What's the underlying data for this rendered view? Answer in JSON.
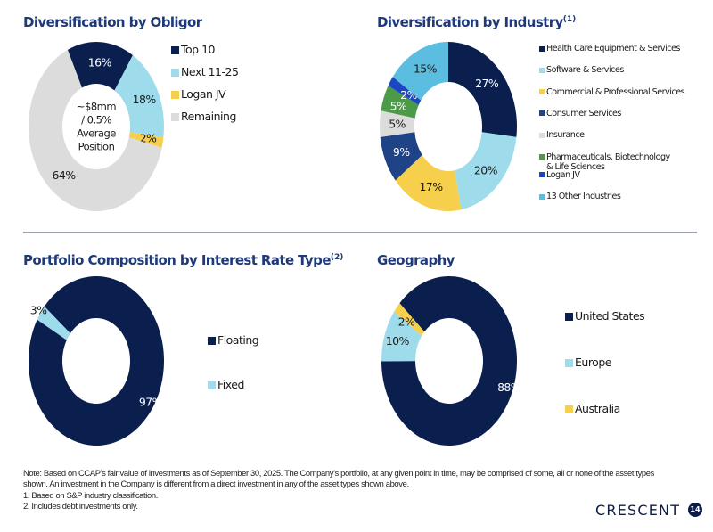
{
  "colors": {
    "navy": "#0b1f4e",
    "light_blue": "#9edcec",
    "yellow": "#f6d04d",
    "gray": "#dcdcdc",
    "medium_blue": "#1e4386",
    "green": "#4a9a47",
    "royal_blue": "#1c47c4",
    "sky_blue": "#5bbde0",
    "title": "#1f3a7a"
  },
  "chart_data": [
    {
      "id": "obligor",
      "type": "pie",
      "title": "Diversification by Obligor",
      "title_sup": "",
      "center_label": [
        "~$8mm",
        "/ 0.5%",
        "Average",
        "Position"
      ],
      "start_angle_deg": -25,
      "slices": [
        {
          "label": "Top 10",
          "value": 16,
          "display": "16%",
          "color": "#0b1f4e",
          "text_color": "#ffffff"
        },
        {
          "label": "Next 11-25",
          "value": 18,
          "display": "18%",
          "color": "#9edcec",
          "text_color": "#1a1a1a"
        },
        {
          "label": "Logan JV",
          "value": 2,
          "display": "2%",
          "color": "#f6d04d",
          "text_color": "#1a1a1a"
        },
        {
          "label": "Remaining",
          "value": 64,
          "display": "64%",
          "color": "#dcdcdc",
          "text_color": "#1a1a1a"
        }
      ],
      "legend_position": "right"
    },
    {
      "id": "industry",
      "type": "pie",
      "title": "Diversification by Industry",
      "title_sup": "(1)",
      "center_label": [],
      "start_angle_deg": 0,
      "slices": [
        {
          "label": "Health Care Equipment & Services",
          "value": 27,
          "display": "27%",
          "color": "#0b1f4e",
          "text_color": "#ffffff"
        },
        {
          "label": "Software & Services",
          "value": 20,
          "display": "20%",
          "color": "#9edcec",
          "text_color": "#1a1a1a"
        },
        {
          "label": "Commercial & Professional Services",
          "value": 17,
          "display": "17%",
          "color": "#f6d04d",
          "text_color": "#1a1a1a"
        },
        {
          "label": "Consumer Services",
          "value": 9,
          "display": "9%",
          "color": "#1e4386",
          "text_color": "#ffffff"
        },
        {
          "label": "Insurance",
          "value": 5,
          "display": "5%",
          "color": "#dcdcdc",
          "text_color": "#1a1a1a"
        },
        {
          "label": "Pharmaceuticals, Biotechnology & Life Sciences",
          "value": 5,
          "display": "5%",
          "color": "#4a9a47",
          "text_color": "#ffffff"
        },
        {
          "label": "Logan JV",
          "value": 2,
          "display": "2%",
          "color": "#1c47c4",
          "text_color": "#ffffff"
        },
        {
          "label": "13 Other Industries",
          "value": 15,
          "display": "15%",
          "color": "#5bbde0",
          "text_color": "#1a1a1a"
        }
      ],
      "legend_position": "right"
    },
    {
      "id": "interest",
      "type": "pie",
      "title": "Portfolio Composition by Interest Rate Type",
      "title_sup": "(2)",
      "center_label": [],
      "start_angle_deg": -50,
      "slices": [
        {
          "label": "Floating",
          "value": 97,
          "display": "97%",
          "color": "#0b1f4e",
          "text_color": "#ffffff"
        },
        {
          "label": "Fixed",
          "value": 3,
          "display": "3%",
          "color": "#9edcec",
          "text_color": "#1a1a1a"
        }
      ],
      "legend_position": "right"
    },
    {
      "id": "geography",
      "type": "pie",
      "title": "Geography",
      "title_sup": "",
      "center_label": [],
      "start_angle_deg": -47,
      "slices": [
        {
          "label": "United States",
          "value": 88,
          "display": "88%",
          "color": "#0b1f4e",
          "text_color": "#ffffff"
        },
        {
          "label": "Europe",
          "value": 10,
          "display": "10%",
          "color": "#9edcec",
          "text_color": "#1a1a1a"
        },
        {
          "label": "Australia",
          "value": 2,
          "display": "2%",
          "color": "#f6d04d",
          "text_color": "#1a1a1a"
        }
      ],
      "legend_position": "right"
    }
  ],
  "notes": [
    "Note: Based on CCAP's fair value of investments as of September 30, 2025. The Company's portfolio, at any given point in time, may be comprised of some, all or none of the asset types",
    "shown. An investment in the Company is different from a direct investment in any of the asset types shown above.",
    "1.  Based on S&P industry classification.",
    "2.  Includes debt investments only."
  ],
  "footer": {
    "logo": "CRESCENT",
    "page_number": "14"
  }
}
